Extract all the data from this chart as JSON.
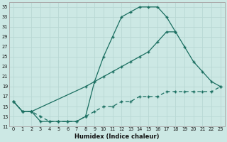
{
  "xlabel": "Humidex (Indice chaleur)",
  "bg_color": "#cce8e4",
  "grid_color": "#b8d8d4",
  "line_color": "#1a6e60",
  "xlim": [
    -0.5,
    23.5
  ],
  "ylim": [
    11,
    36
  ],
  "yticks": [
    11,
    13,
    15,
    17,
    19,
    21,
    23,
    25,
    27,
    29,
    31,
    33,
    35
  ],
  "xticks": [
    0,
    1,
    2,
    3,
    4,
    5,
    6,
    7,
    8,
    9,
    10,
    11,
    12,
    13,
    14,
    15,
    16,
    17,
    18,
    19,
    20,
    21,
    22,
    23
  ],
  "series1_x": [
    0,
    1,
    2,
    3,
    4,
    5,
    6,
    7,
    8,
    9,
    10,
    11,
    12,
    13,
    14,
    15,
    16,
    17,
    18
  ],
  "series1_y": [
    16,
    14,
    14,
    12,
    12,
    12,
    12,
    12,
    13,
    20,
    25,
    29,
    33,
    34,
    35,
    35,
    35,
    33,
    30
  ],
  "series2_x": [
    0,
    1,
    2,
    8,
    9,
    10,
    11,
    12,
    13,
    14,
    15,
    16,
    17,
    18,
    19,
    20,
    21,
    22,
    23
  ],
  "series2_y": [
    16,
    14,
    14,
    19,
    20,
    21,
    22,
    23,
    24,
    25,
    26,
    28,
    30,
    30,
    27,
    24,
    22,
    20,
    19
  ],
  "series3_x": [
    0,
    1,
    2,
    3,
    4,
    5,
    6,
    7,
    8,
    9,
    10,
    11,
    12,
    13,
    14,
    15,
    16,
    17,
    18,
    19,
    20,
    21,
    22,
    23
  ],
  "series3_y": [
    16,
    14,
    14,
    13,
    12,
    12,
    12,
    12,
    13,
    14,
    15,
    15,
    16,
    16,
    17,
    17,
    17,
    18,
    18,
    18,
    18,
    18,
    18,
    19
  ]
}
